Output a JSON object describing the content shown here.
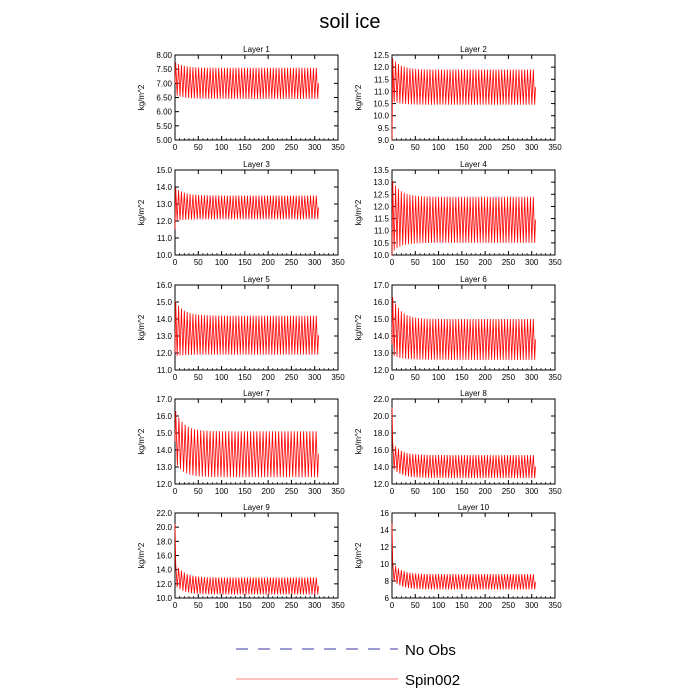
{
  "figure": {
    "title": "soil ice",
    "colors": {
      "spin": "#ff0000",
      "noobs": "#3a3aa0",
      "axis": "#000000"
    }
  },
  "legend": {
    "items": [
      {
        "label": "No Obs",
        "style": "dashed"
      },
      {
        "label": "Spin002",
        "style": "solid"
      }
    ]
  },
  "chart_data": [
    {
      "type": "line",
      "title": "Layer 1",
      "xlabel": "",
      "ylabel": "kg/m^2",
      "xlim": [
        0,
        350
      ],
      "ylim": [
        5.0,
        8.0
      ],
      "xticks": [
        0,
        50,
        100,
        150,
        200,
        250,
        300,
        350
      ],
      "yticks": [
        "5.00",
        "5.50",
        "6.00",
        "6.50",
        "7.00",
        "7.50",
        "8.00"
      ],
      "series": [
        {
          "name": "Spin002",
          "x_end": 308,
          "cycles": 50,
          "start": 7.0,
          "upper_start": 7.75,
          "upper_end": 7.55,
          "lower_start": 6.6,
          "lower_end": 6.45
        }
      ]
    },
    {
      "type": "line",
      "title": "Layer 2",
      "xlabel": "",
      "ylabel": "kg/m^2",
      "xlim": [
        0,
        350
      ],
      "ylim": [
        9.0,
        12.5
      ],
      "xticks": [
        0,
        50,
        100,
        150,
        200,
        250,
        300,
        350
      ],
      "yticks": [
        "9.0",
        "9.5",
        "10.0",
        "10.5",
        "11.0",
        "11.5",
        "12.0",
        "12.5"
      ],
      "series": [
        {
          "name": "Spin002",
          "x_end": 308,
          "cycles": 50,
          "start": 9.0,
          "upper_start": 12.4,
          "upper_end": 11.9,
          "lower_start": 10.6,
          "lower_end": 10.45
        }
      ]
    },
    {
      "type": "line",
      "title": "Layer 3",
      "xlabel": "",
      "ylabel": "kg/m^2",
      "xlim": [
        0,
        350
      ],
      "ylim": [
        10.0,
        15.0
      ],
      "xticks": [
        0,
        50,
        100,
        150,
        200,
        250,
        300,
        350
      ],
      "yticks": [
        "10.0",
        "11.0",
        "12.0",
        "13.0",
        "14.0",
        "15.0"
      ],
      "series": [
        {
          "name": "Spin002",
          "x_end": 308,
          "cycles": 50,
          "start": 11.5,
          "upper_start": 14.0,
          "upper_end": 13.5,
          "lower_start": 12.0,
          "lower_end": 12.1
        }
      ]
    },
    {
      "type": "line",
      "title": "Layer 4",
      "xlabel": "",
      "ylabel": "kg/m^2",
      "xlim": [
        0,
        350
      ],
      "ylim": [
        10.0,
        13.5
      ],
      "xticks": [
        0,
        50,
        100,
        150,
        200,
        250,
        300,
        350
      ],
      "yticks": [
        "10.0",
        "10.5",
        "11.0",
        "11.5",
        "12.0",
        "12.5",
        "13.0",
        "13.5"
      ],
      "series": [
        {
          "name": "Spin002",
          "x_end": 308,
          "cycles": 50,
          "start": 10.0,
          "upper_start": 13.1,
          "upper_end": 12.4,
          "lower_start": 10.1,
          "lower_end": 10.5
        }
      ]
    },
    {
      "type": "line",
      "title": "Layer 5",
      "xlabel": "",
      "ylabel": "kg/m^2",
      "xlim": [
        0,
        350
      ],
      "ylim": [
        11.0,
        16.0
      ],
      "xticks": [
        0,
        50,
        100,
        150,
        200,
        250,
        300,
        350
      ],
      "yticks": [
        "11.0",
        "12.0",
        "13.0",
        "14.0",
        "15.0",
        "16.0"
      ],
      "series": [
        {
          "name": "Spin002",
          "x_end": 308,
          "cycles": 50,
          "start": 12.0,
          "upper_start": 15.1,
          "upper_end": 14.2,
          "lower_start": 11.8,
          "lower_end": 11.9
        }
      ]
    },
    {
      "type": "line",
      "title": "Layer 6",
      "xlabel": "",
      "ylabel": "kg/m^2",
      "xlim": [
        0,
        350
      ],
      "ylim": [
        12.0,
        17.0
      ],
      "xticks": [
        0,
        50,
        100,
        150,
        200,
        250,
        300,
        350
      ],
      "yticks": [
        "12.0",
        "13.0",
        "14.0",
        "15.0",
        "16.0",
        "17.0"
      ],
      "series": [
        {
          "name": "Spin002",
          "x_end": 308,
          "cycles": 50,
          "start": 13.5,
          "upper_start": 16.4,
          "upper_end": 15.0,
          "lower_start": 12.9,
          "lower_end": 12.6
        }
      ]
    },
    {
      "type": "line",
      "title": "Layer 7",
      "xlabel": "",
      "ylabel": "kg/m^2",
      "xlim": [
        0,
        350
      ],
      "ylim": [
        12.0,
        17.0
      ],
      "xticks": [
        0,
        50,
        100,
        150,
        200,
        250,
        300,
        350
      ],
      "yticks": [
        "12.0",
        "13.0",
        "14.0",
        "15.0",
        "16.0",
        "17.0"
      ],
      "series": [
        {
          "name": "Spin002",
          "x_end": 308,
          "cycles": 46,
          "start": 14.5,
          "upper_start": 16.4,
          "upper_end": 15.1,
          "lower_start": 13.3,
          "lower_end": 12.4
        }
      ]
    },
    {
      "type": "line",
      "title": "Layer 8",
      "xlabel": "",
      "ylabel": "kg/m^2",
      "xlim": [
        0,
        350
      ],
      "ylim": [
        12.0,
        22.0
      ],
      "xticks": [
        0,
        50,
        100,
        150,
        200,
        250,
        300,
        350
      ],
      "yticks": [
        "12.0",
        "14.0",
        "16.0",
        "18.0",
        "20.0",
        "22.0"
      ],
      "series": [
        {
          "name": "Spin002",
          "x_end": 308,
          "cycles": 50,
          "start": 21.0,
          "upper_start": 17.0,
          "upper_end": 15.4,
          "lower_start": 14.0,
          "lower_end": 12.7
        }
      ]
    },
    {
      "type": "line",
      "title": "Layer 9",
      "xlabel": "",
      "ylabel": "kg/m^2",
      "xlim": [
        0,
        350
      ],
      "ylim": [
        10.0,
        22.0
      ],
      "xticks": [
        0,
        50,
        100,
        150,
        200,
        250,
        300,
        350
      ],
      "yticks": [
        "10.0",
        "12.0",
        "14.0",
        "16.0",
        "18.0",
        "20.0",
        "22.0"
      ],
      "series": [
        {
          "name": "Spin002",
          "x_end": 308,
          "cycles": 50,
          "start": 20.5,
          "upper_start": 15.0,
          "upper_end": 12.9,
          "lower_start": 11.8,
          "lower_end": 10.5
        }
      ]
    },
    {
      "type": "line",
      "title": "Layer 10",
      "xlabel": "",
      "ylabel": "kg/m^2",
      "xlim": [
        0,
        350
      ],
      "ylim": [
        6,
        16
      ],
      "xticks": [
        0,
        50,
        100,
        150,
        200,
        250,
        300,
        350
      ],
      "yticks": [
        "6",
        "8",
        "10",
        "12",
        "14",
        "16"
      ],
      "series": [
        {
          "name": "Spin002",
          "x_end": 308,
          "cycles": 50,
          "start": 14.8,
          "upper_start": 10.3,
          "upper_end": 8.8,
          "lower_start": 8.2,
          "lower_end": 7.0
        }
      ]
    }
  ]
}
